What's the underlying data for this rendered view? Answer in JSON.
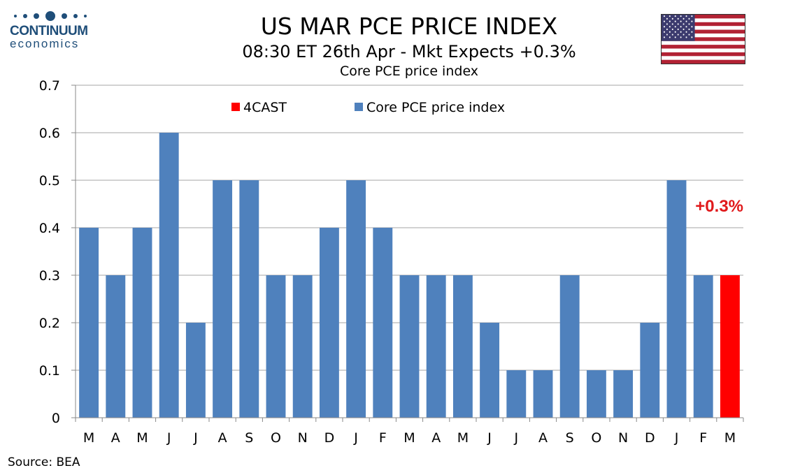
{
  "logo": {
    "name": "CONTINUUM",
    "sub": "economics"
  },
  "title": "US MAR PCE PRICE INDEX",
  "subtitle": "08:30 ET 26th Apr - Mkt Expects +0.3%",
  "source": "Source: BEA",
  "flag_icon": "us-flag-icon",
  "colors": {
    "series": "#4f81bd",
    "forecast": "#ff0000",
    "brand": "#1f4e79",
    "annotation": "#e0191b"
  },
  "chart_data": {
    "type": "bar",
    "title": "Core PCE price index",
    "xlabel": "",
    "ylabel": "",
    "ylim": [
      0,
      0.7
    ],
    "yticks": [
      "0",
      "0.1",
      "0.2",
      "0.3",
      "0.4",
      "0.5",
      "0.6",
      "0.7"
    ],
    "grid": true,
    "legend_position": "top",
    "categories": [
      "M",
      "A",
      "M",
      "J",
      "J",
      "A",
      "S",
      "O",
      "N",
      "D",
      "J",
      "F",
      "M",
      "A",
      "M",
      "J",
      "J",
      "A",
      "S",
      "O",
      "N",
      "D",
      "J",
      "F",
      "M"
    ],
    "series": [
      {
        "name": "4CAST",
        "color": "#ff0000",
        "values": [
          null,
          null,
          null,
          null,
          null,
          null,
          null,
          null,
          null,
          null,
          null,
          null,
          null,
          null,
          null,
          null,
          null,
          null,
          null,
          null,
          null,
          null,
          null,
          null,
          0.3
        ]
      },
      {
        "name": "Core PCE price index",
        "color": "#4f81bd",
        "values": [
          0.4,
          0.3,
          0.4,
          0.6,
          0.2,
          0.5,
          0.5,
          0.3,
          0.3,
          0.4,
          0.5,
          0.4,
          0.3,
          0.3,
          0.3,
          0.2,
          0.1,
          0.1,
          0.3,
          0.1,
          0.1,
          0.2,
          0.5,
          0.3,
          null
        ]
      }
    ],
    "annotation": {
      "text": "+0.3%",
      "category_index": 24,
      "value": 0.3
    }
  }
}
